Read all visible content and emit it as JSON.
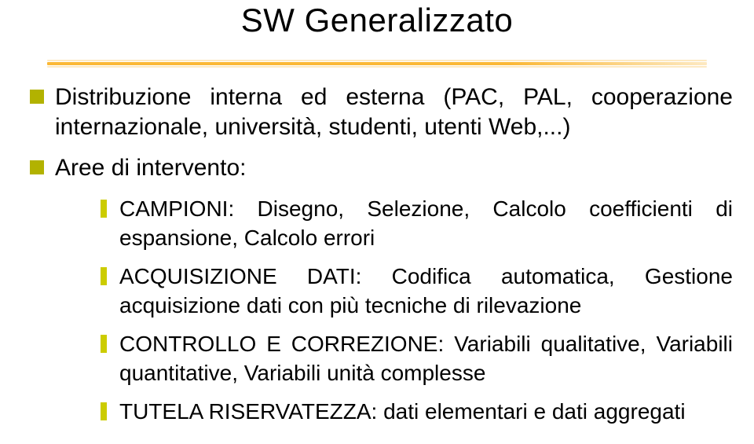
{
  "colors": {
    "title": "#000000",
    "body": "#000000",
    "bullet_square": "#b2b200",
    "bullet_bar": "#cccc00",
    "divider_inner": "#fbb836",
    "divider_outer": "#fde9c2",
    "background": "#ffffff"
  },
  "typography": {
    "title_fontsize": 42,
    "body_fontsize": 30,
    "body_lineheight": 38,
    "sub_fontsize": 28,
    "sub_lineheight": 37
  },
  "title": "SW Generalizzato",
  "items": [
    {
      "text": "Distribuzione interna ed esterna (PAC, PAL, cooperazione internazionale, università, studenti, utenti Web,...)"
    },
    {
      "text": "Aree di intervento:",
      "sub": [
        "CAMPIONI: Disegno, Selezione, Calcolo coefficienti di espansione, Calcolo errori",
        "ACQUISIZIONE DATI: Codifica automatica, Gestione acquisizione dati con più tecniche di rilevazione",
        "CONTROLLO E CORREZIONE: Variabili qualitative, Variabili quantitative, Variabili unità complesse",
        "TUTELA RISERVATEZZA: dati elementari e dati aggregati"
      ]
    }
  ]
}
